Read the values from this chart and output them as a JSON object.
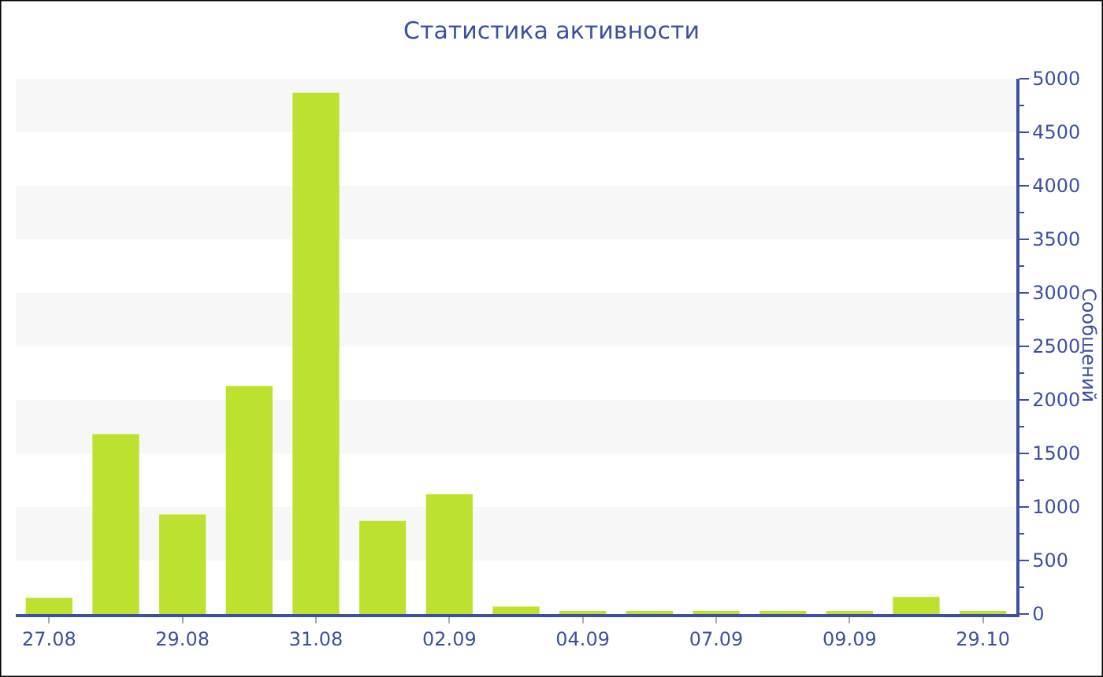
{
  "chart_data": {
    "type": "bar",
    "title": "Статистика активности",
    "ylabel": "Сообщений",
    "categories": [
      "27.08",
      null,
      "29.08",
      null,
      "31.08",
      null,
      "02.09",
      null,
      "04.09",
      null,
      "07.09",
      null,
      "09.09",
      null,
      "29.10"
    ],
    "values": [
      150,
      1680,
      930,
      2130,
      4870,
      870,
      1120,
      70,
      30,
      20,
      20,
      30,
      20,
      160,
      20
    ],
    "color": "#bce12f",
    "ylim": [
      0,
      5000
    ],
    "yticks": [
      0,
      500,
      1000,
      1500,
      2000,
      2500,
      3000,
      3500,
      4000,
      4500,
      5000
    ],
    "bands": [
      {
        "axis": "y",
        "from": 500,
        "to": 1000,
        "color": "#f7f7f7"
      },
      {
        "axis": "y",
        "from": 1500,
        "to": 2000,
        "color": "#f7f7f7"
      },
      {
        "axis": "y",
        "from": 2500,
        "to": 3000,
        "color": "#f7f7f7"
      },
      {
        "axis": "y",
        "from": 3500,
        "to": 4000,
        "color": "#f7f7f7"
      },
      {
        "axis": "y",
        "from": 4500,
        "to": 5000,
        "color": "#f7f7f7"
      }
    ],
    "legend": false
  }
}
